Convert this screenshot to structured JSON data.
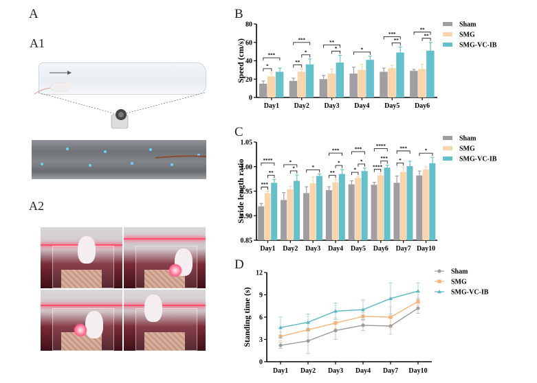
{
  "panels": {
    "A": "A",
    "A1": "A1",
    "A2": "A2",
    "B": "B",
    "C": "C",
    "D": "D"
  },
  "colors": {
    "sham": "#a09ea3",
    "smg": "#f9d5ad",
    "vcib": "#66c0cc",
    "sham_line": "#9b9b9b",
    "smg_line": "#f6b47a",
    "vcib_line": "#5bb7c4"
  },
  "legend": [
    "Sham",
    "SMG",
    "SMG-VC-IB"
  ],
  "chart_data": [
    {
      "type": "bar",
      "title": "B",
      "xlabel": "",
      "ylabel": "Speed (cm/s)",
      "ylim": [
        0,
        80
      ],
      "yticks": [
        "0",
        "20",
        "40",
        "60",
        "80"
      ],
      "categories": [
        "Day1",
        "Day2",
        "Day3",
        "Day4",
        "Day5",
        "Day6"
      ],
      "series": [
        {
          "name": "Sham",
          "values": [
            15,
            18,
            20,
            26,
            28,
            29
          ],
          "errors": [
            3,
            3,
            4,
            7,
            4,
            1.5
          ]
        },
        {
          "name": "SMG",
          "values": [
            23,
            28,
            26,
            30,
            32,
            31
          ],
          "errors": [
            4,
            3,
            5,
            6,
            3,
            5
          ]
        },
        {
          "name": "SMG-VC-IB",
          "values": [
            28,
            36,
            38,
            41,
            49,
            51
          ],
          "errors": [
            4,
            6,
            8,
            4,
            6,
            9
          ]
        }
      ],
      "annotations": [
        {
          "day": "Day1",
          "pairs": [
            {
              "a": 0,
              "b": 1,
              "label": "*"
            },
            {
              "a": 0,
              "b": 2,
              "label": "***"
            }
          ]
        },
        {
          "day": "Day2",
          "pairs": [
            {
              "a": 0,
              "b": 1,
              "label": "**"
            },
            {
              "a": 1,
              "b": 2,
              "label": "*"
            },
            {
              "a": 0,
              "b": 2,
              "label": "***"
            }
          ]
        },
        {
          "day": "Day3",
          "pairs": [
            {
              "a": 1,
              "b": 2,
              "label": "*"
            },
            {
              "a": 0,
              "b": 2,
              "label": "**"
            }
          ]
        },
        {
          "day": "Day4",
          "pairs": [
            {
              "a": 0,
              "b": 2,
              "label": "*"
            }
          ]
        },
        {
          "day": "Day5",
          "pairs": [
            {
              "a": 1,
              "b": 2,
              "label": "**"
            },
            {
              "a": 0,
              "b": 2,
              "label": "***"
            }
          ]
        },
        {
          "day": "Day6",
          "pairs": [
            {
              "a": 1,
              "b": 2,
              "label": "**"
            },
            {
              "a": 0,
              "b": 2,
              "label": "**"
            }
          ]
        }
      ],
      "legend": "top-right"
    },
    {
      "type": "bar",
      "title": "C",
      "xlabel": "",
      "ylabel": "Stride length ratio",
      "ylim": [
        0.85,
        1.05
      ],
      "yticks": [
        "0.85",
        "0.90",
        "0.95",
        "1.00",
        "1.05"
      ],
      "categories": [
        "Day1",
        "Day2",
        "Day3",
        "Day4",
        "Day5",
        "Day6",
        "Day7",
        "Day10"
      ],
      "series": [
        {
          "name": "Sham",
          "values": [
            0.919,
            0.932,
            0.946,
            0.952,
            0.964,
            0.963,
            0.967,
            0.982
          ],
          "errors": [
            0.006,
            0.015,
            0.013,
            0.007,
            0.007,
            0.005,
            0.014,
            0.009
          ]
        },
        {
          "name": "SMG",
          "values": [
            0.946,
            0.954,
            0.966,
            0.968,
            0.977,
            0.982,
            0.989,
            0.994
          ],
          "errors": [
            0.004,
            0.006,
            0.013,
            0.006,
            0.003,
            0.004,
            0.01,
            0.006
          ]
        },
        {
          "name": "SMG-VC-IB",
          "values": [
            0.967,
            0.971,
            0.981,
            0.985,
            0.991,
            0.998,
            1.001,
            1.007
          ],
          "errors": [
            0.007,
            0.012,
            0.004,
            0.009,
            0.006,
            0.005,
            0.01,
            0.012
          ]
        }
      ],
      "annotations": [
        {
          "day": "Day1",
          "pairs": [
            {
              "a": 0,
              "b": 1,
              "label": "***"
            },
            {
              "a": 1,
              "b": 2,
              "label": "**"
            },
            {
              "a": 0,
              "b": 2,
              "label": "****"
            }
          ]
        },
        {
          "day": "Day2",
          "pairs": [
            {
              "a": 1,
              "b": 2,
              "label": "*"
            },
            {
              "a": 0,
              "b": 2,
              "label": "*"
            }
          ]
        },
        {
          "day": "Day3",
          "pairs": [
            {
              "a": 0,
              "b": 2,
              "label": "*"
            }
          ]
        },
        {
          "day": "Day4",
          "pairs": [
            {
              "a": 0,
              "b": 1,
              "label": "**"
            },
            {
              "a": 1,
              "b": 2,
              "label": "*"
            },
            {
              "a": 0,
              "b": 2,
              "label": "***"
            }
          ]
        },
        {
          "day": "Day5",
          "pairs": [
            {
              "a": 0,
              "b": 1,
              "label": "*"
            },
            {
              "a": 1,
              "b": 2,
              "label": "*"
            },
            {
              "a": 0,
              "b": 2,
              "label": "***"
            }
          ]
        },
        {
          "day": "Day6",
          "pairs": [
            {
              "a": 0,
              "b": 1,
              "label": "****"
            },
            {
              "a": 1,
              "b": 2,
              "label": "***"
            },
            {
              "a": 0,
              "b": 2,
              "label": "****"
            }
          ]
        },
        {
          "day": "Day7",
          "pairs": [
            {
              "a": 0,
              "b": 1,
              "label": "*"
            },
            {
              "a": 0,
              "b": 2,
              "label": "***"
            }
          ]
        },
        {
          "day": "Day10",
          "pairs": [
            {
              "a": 0,
              "b": 2,
              "label": "*"
            }
          ]
        }
      ],
      "legend": "top-right"
    },
    {
      "type": "line",
      "title": "D",
      "xlabel": "",
      "ylabel": "Standing time (s)",
      "ylim": [
        0,
        12
      ],
      "yticks": [
        "0",
        "3",
        "6",
        "9",
        "12"
      ],
      "categories": [
        "Day1",
        "Day2",
        "Day3",
        "Day4",
        "Day7",
        "Day10"
      ],
      "series": [
        {
          "name": "Sham",
          "marker": "circle",
          "values": [
            2.2,
            2.8,
            4.2,
            4.9,
            4.8,
            7.2
          ],
          "errors": [
            0.4,
            1.7,
            1.2,
            0.7,
            1.1,
            0.7
          ]
        },
        {
          "name": "SMG",
          "marker": "square",
          "values": [
            3.4,
            4.3,
            5.2,
            6.1,
            6.0,
            8.1
          ],
          "errors": [
            0.6,
            1.0,
            0.7,
            0.5,
            1.4,
            0.5
          ]
        },
        {
          "name": "SMG-VC-IB",
          "marker": "triangle",
          "values": [
            4.6,
            5.3,
            6.8,
            7.0,
            8.5,
            9.5
          ],
          "errors": [
            1.4,
            1.1,
            1.1,
            1.3,
            2.1,
            1.1
          ]
        }
      ],
      "legend": "top-right"
    }
  ]
}
